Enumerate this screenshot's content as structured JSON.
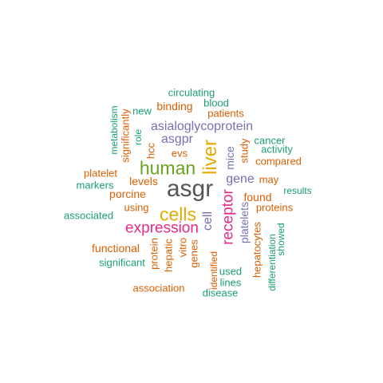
{
  "palette": {
    "teal": "#1b9e77",
    "orange": "#d95f02",
    "purple": "#7570b3",
    "magenta": "#e7298a",
    "green": "#66a61e",
    "gold": "#e6ab02",
    "gray": "#555555"
  },
  "words": [
    {
      "text": "asgr",
      "color": "#555555",
      "vertical": false
    },
    {
      "text": "cells",
      "color": "#e6ab02",
      "vertical": false
    },
    {
      "text": "human",
      "color": "#66a61e",
      "vertical": false
    },
    {
      "text": "liver",
      "color": "#e6ab02",
      "vertical": true
    },
    {
      "text": "expression",
      "color": "#e7298a",
      "vertical": false
    },
    {
      "text": "receptor",
      "color": "#e7298a",
      "vertical": true
    },
    {
      "text": "asialoglycoprotein",
      "color": "#7570b3",
      "vertical": false
    },
    {
      "text": "asgpr",
      "color": "#7570b3",
      "vertical": false
    },
    {
      "text": "gene",
      "color": "#7570b3",
      "vertical": false
    },
    {
      "text": "cell",
      "color": "#7570b3",
      "vertical": true
    },
    {
      "text": "platelets",
      "color": "#7570b3",
      "vertical": true
    },
    {
      "text": "circulating",
      "color": "#1b9e77",
      "vertical": false
    },
    {
      "text": "blood",
      "color": "#1b9e77",
      "vertical": false
    },
    {
      "text": "binding",
      "color": "#d95f02",
      "vertical": false
    },
    {
      "text": "new",
      "color": "#1b9e77",
      "vertical": false
    },
    {
      "text": "patients",
      "color": "#d95f02",
      "vertical": false
    },
    {
      "text": "metabolism",
      "color": "#1b9e77",
      "vertical": true
    },
    {
      "text": "significantly",
      "color": "#d95f02",
      "vertical": true
    },
    {
      "text": "role",
      "color": "#1b9e77",
      "vertical": true
    },
    {
      "text": "hcc",
      "color": "#d95f02",
      "vertical": true
    },
    {
      "text": "evs",
      "color": "#d95f02",
      "vertical": false
    },
    {
      "text": "mice",
      "color": "#7570b3",
      "vertical": true
    },
    {
      "text": "study",
      "color": "#d95f02",
      "vertical": true
    },
    {
      "text": "cancer",
      "color": "#1b9e77",
      "vertical": false
    },
    {
      "text": "activity",
      "color": "#1b9e77",
      "vertical": false
    },
    {
      "text": "compared",
      "color": "#d95f02",
      "vertical": false
    },
    {
      "text": "platelet",
      "color": "#d95f02",
      "vertical": false
    },
    {
      "text": "markers",
      "color": "#1b9e77",
      "vertical": false
    },
    {
      "text": "levels",
      "color": "#d95f02",
      "vertical": false
    },
    {
      "text": "may",
      "color": "#d95f02",
      "vertical": false
    },
    {
      "text": "results",
      "color": "#1b9e77",
      "vertical": false
    },
    {
      "text": "porcine",
      "color": "#d95f02",
      "vertical": false
    },
    {
      "text": "found",
      "color": "#d95f02",
      "vertical": false
    },
    {
      "text": "using",
      "color": "#d95f02",
      "vertical": false
    },
    {
      "text": "proteins",
      "color": "#d95f02",
      "vertical": false
    },
    {
      "text": "associated",
      "color": "#1b9e77",
      "vertical": false
    },
    {
      "text": "functional",
      "color": "#d95f02",
      "vertical": false
    },
    {
      "text": "protein",
      "color": "#d95f02",
      "vertical": true
    },
    {
      "text": "hepatic",
      "color": "#d95f02",
      "vertical": true
    },
    {
      "text": "vitro",
      "color": "#d95f02",
      "vertical": true
    },
    {
      "text": "genes",
      "color": "#d95f02",
      "vertical": true
    },
    {
      "text": "significant",
      "color": "#1b9e77",
      "vertical": false
    },
    {
      "text": "identified",
      "color": "#d95f02",
      "vertical": true
    },
    {
      "text": "used",
      "color": "#1b9e77",
      "vertical": false
    },
    {
      "text": "lines",
      "color": "#1b9e77",
      "vertical": false
    },
    {
      "text": "hepatocytes",
      "color": "#d95f02",
      "vertical": true
    },
    {
      "text": "differentiation",
      "color": "#1b9e77",
      "vertical": true
    },
    {
      "text": "showed",
      "color": "#1b9e77",
      "vertical": true
    },
    {
      "text": "association",
      "color": "#d95f02",
      "vertical": false
    },
    {
      "text": "disease",
      "color": "#1b9e77",
      "vertical": false
    }
  ]
}
